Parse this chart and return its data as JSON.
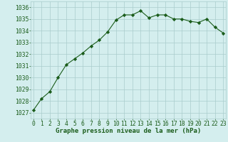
{
  "x": [
    0,
    1,
    2,
    3,
    4,
    5,
    6,
    7,
    8,
    9,
    10,
    11,
    12,
    13,
    14,
    15,
    16,
    17,
    18,
    19,
    20,
    21,
    22,
    23
  ],
  "y": [
    1027.2,
    1028.2,
    1028.8,
    1030.0,
    1031.1,
    1031.6,
    1032.1,
    1032.7,
    1033.2,
    1033.9,
    1034.9,
    1035.35,
    1035.35,
    1035.7,
    1035.1,
    1035.35,
    1035.35,
    1035.0,
    1035.0,
    1034.8,
    1034.7,
    1035.0,
    1034.3,
    1033.8
  ],
  "line_color": "#1a5c1a",
  "marker": "D",
  "marker_size": 2.2,
  "bg_color": "#d4eeee",
  "grid_color": "#aacccc",
  "xlabel": "Graphe pression niveau de la mer (hPa)",
  "xlabel_fontsize": 6.5,
  "xlabel_color": "#1a5c1a",
  "ytick_labels": [
    1027,
    1028,
    1029,
    1030,
    1031,
    1032,
    1033,
    1034,
    1035,
    1036
  ],
  "ylim": [
    1026.5,
    1036.5
  ],
  "xlim": [
    -0.3,
    23.3
  ],
  "tick_fontsize": 5.8,
  "tick_color": "#1a5c1a",
  "linewidth": 0.8
}
